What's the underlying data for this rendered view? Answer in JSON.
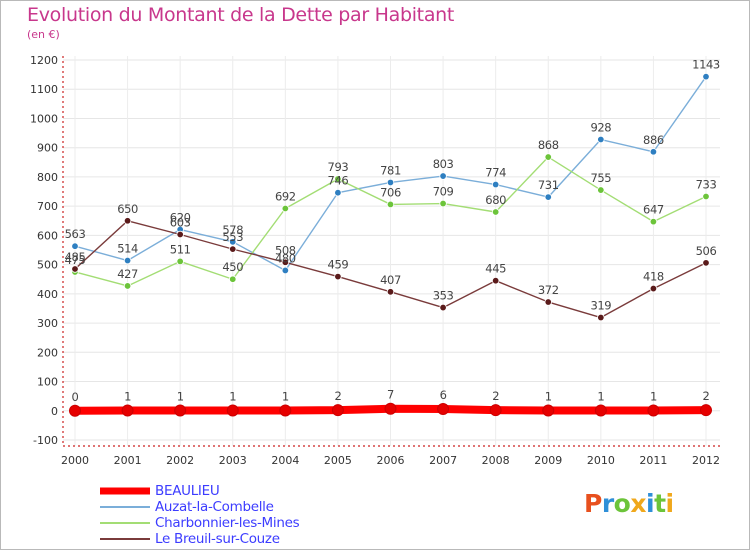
{
  "chart_data": {
    "type": "line",
    "title": "Evolution du Montant de la Dette par Habitant",
    "subtitle": "(en €)",
    "x": [
      "2000",
      "2001",
      "2002",
      "2003",
      "2004",
      "2005",
      "2006",
      "2007",
      "2008",
      "2009",
      "2010",
      "2011",
      "2012"
    ],
    "ylim": [
      -100,
      1200
    ],
    "yticks": [
      -100,
      0,
      100,
      200,
      300,
      400,
      500,
      600,
      700,
      800,
      900,
      1000,
      1100,
      1200
    ],
    "grid": true,
    "legend_position": "bottom-left",
    "series": [
      {
        "name": "BEAULIEU",
        "color": "#ff0000",
        "marker": "#e60000",
        "values": [
          0,
          1,
          1,
          1,
          1,
          2,
          7,
          6,
          2,
          1,
          1,
          1,
          2
        ]
      },
      {
        "name": "Auzat-la-Combelle",
        "color": "#7baed9",
        "marker": "#2e7fc1",
        "values": [
          563,
          514,
          620,
          578,
          480,
          746,
          781,
          803,
          774,
          731,
          928,
          886,
          1143
        ]
      },
      {
        "name": "Charbonnier-les-Mines",
        "color": "#a3dd74",
        "marker": "#6cc43a",
        "values": [
          475,
          427,
          511,
          450,
          692,
          793,
          706,
          709,
          680,
          868,
          755,
          647,
          733
        ]
      },
      {
        "name": "Le Breuil-sur-Couze",
        "color": "#7a3b3b",
        "marker": "#5a1a1a",
        "values": [
          485,
          650,
          603,
          553,
          508,
          459,
          407,
          353,
          445,
          372,
          319,
          418,
          506
        ]
      }
    ],
    "data_labels": [
      [
        "0",
        "1",
        "1",
        "1",
        "1",
        "2",
        "7",
        "6",
        "2",
        "1",
        "1",
        "1",
        "2"
      ],
      [
        "563",
        "514",
        "620",
        "578",
        "480",
        "746",
        "781",
        "803",
        "774",
        "731",
        "928",
        "886",
        "1143"
      ],
      [
        "475",
        "427",
        "511",
        "450",
        "692",
        "793",
        "706",
        "709",
        "680",
        "868",
        "755",
        "647",
        "733"
      ],
      [
        "485",
        "650",
        "603",
        "553",
        "508",
        "459",
        "407",
        "353",
        "445",
        "372",
        "319",
        "418",
        "506"
      ]
    ]
  },
  "logo": {
    "text": "Proxiti",
    "colors": [
      "#e8501e",
      "#2f8fd8",
      "#6cc43a",
      "#f0a81c"
    ]
  }
}
